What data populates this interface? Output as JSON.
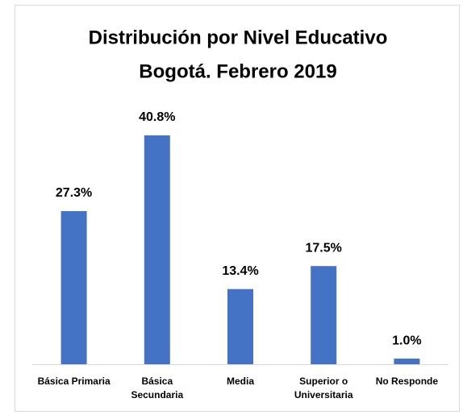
{
  "chart_data": {
    "type": "bar",
    "title": "Distribución por Nivel Educativo",
    "subtitle": "Bogotá. Febrero 2019",
    "categories": [
      "Básica Primaria",
      "Básica Secundaria",
      "Media",
      "Superior o Universitaria",
      "No Responde"
    ],
    "values": [
      27.3,
      40.8,
      13.4,
      17.5,
      1.0
    ],
    "value_labels": [
      "27.3%",
      "40.8%",
      "13.4%",
      "17.5%",
      "1.0%"
    ],
    "color": "#4472c4"
  }
}
